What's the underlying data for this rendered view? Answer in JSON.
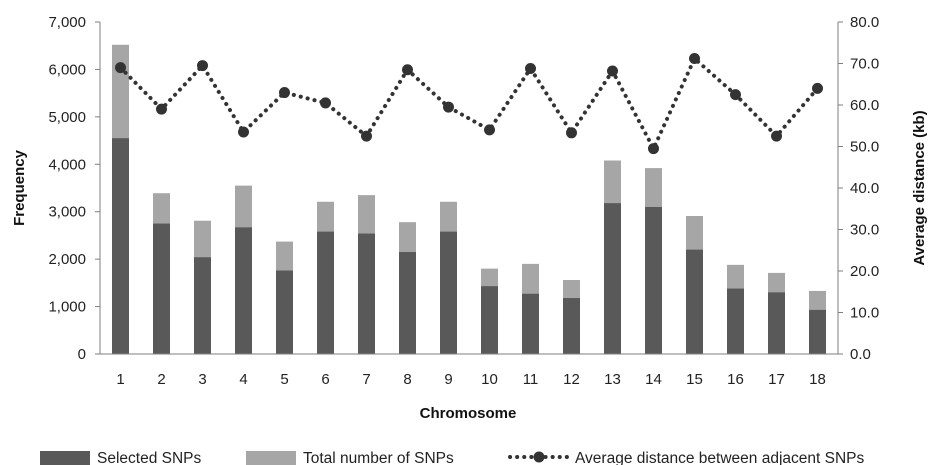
{
  "chart_data": {
    "type": "bar",
    "categories": [
      "1",
      "2",
      "3",
      "4",
      "5",
      "6",
      "7",
      "8",
      "9",
      "10",
      "11",
      "12",
      "13",
      "14",
      "15",
      "16",
      "17",
      "18"
    ],
    "series": [
      {
        "name": "Selected SNPs",
        "kind": "bar",
        "axis": "left",
        "color": "#595959",
        "values": [
          4550,
          2750,
          2040,
          2670,
          1760,
          2580,
          2540,
          2150,
          2580,
          1430,
          1270,
          1180,
          3180,
          3100,
          2200,
          1380,
          1300,
          930
        ]
      },
      {
        "name": "Total number of SNPs",
        "kind": "bar",
        "axis": "left",
        "color": "#a6a6a6",
        "values": [
          6520,
          3390,
          2810,
          3550,
          2370,
          3210,
          3350,
          2780,
          3210,
          1800,
          1900,
          1560,
          4080,
          3920,
          2910,
          1880,
          1710,
          1330
        ]
      },
      {
        "name": "Average distance between adjacent SNPs",
        "kind": "line",
        "axis": "right",
        "color": "#333333",
        "values": [
          69.0,
          59.0,
          69.5,
          53.5,
          63.0,
          60.5,
          52.5,
          68.5,
          59.5,
          54.0,
          68.8,
          53.3,
          68.2,
          49.5,
          71.2,
          62.5,
          52.5,
          64.0
        ]
      }
    ],
    "xlabel": "Chromosome",
    "ylabel": "Frequency",
    "y2label": "Average distance (kb)",
    "ylim": [
      0,
      7000
    ],
    "y2lim": [
      0,
      80
    ],
    "yticks": [
      "0",
      "1,000",
      "2,000",
      "3,000",
      "4,000",
      "5,000",
      "6,000",
      "7,000"
    ],
    "y2ticks": [
      "0.0",
      "10.0",
      "20.0",
      "30.0",
      "40.0",
      "50.0",
      "60.0",
      "70.0",
      "80.0"
    ],
    "bar_layout": "overlapped",
    "grid": false,
    "legend_position": "bottom"
  }
}
